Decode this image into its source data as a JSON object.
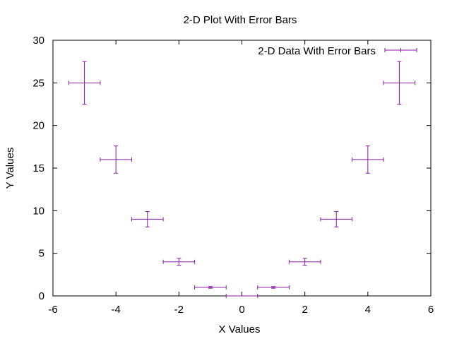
{
  "chart_data": {
    "type": "scatter",
    "title": "2-D Plot With Error Bars",
    "xlabel": "X Values",
    "ylabel": "Y Values",
    "xlim": [
      -6,
      6
    ],
    "ylim": [
      0,
      30
    ],
    "xticks": [
      -6,
      -4,
      -2,
      0,
      2,
      4,
      6
    ],
    "yticks": [
      0,
      5,
      10,
      15,
      20,
      25,
      30
    ],
    "grid": false,
    "legend_position": "top-right",
    "series": [
      {
        "name": "2-D Data With Error Bars",
        "color": "#8b1aa5",
        "x": [
          -5,
          -4,
          -3,
          -2,
          -1,
          0,
          1,
          2,
          3,
          4,
          5
        ],
        "y": [
          25,
          16,
          9,
          4,
          1,
          0,
          1,
          4,
          9,
          16,
          25
        ],
        "xerr": [
          0.5,
          0.5,
          0.5,
          0.5,
          0.5,
          0.5,
          0.5,
          0.5,
          0.5,
          0.5,
          0.5
        ],
        "yerr": [
          2.5,
          1.6,
          0.9,
          0.4,
          0.1,
          0,
          0.1,
          0.4,
          0.9,
          1.6,
          2.5
        ]
      }
    ]
  }
}
